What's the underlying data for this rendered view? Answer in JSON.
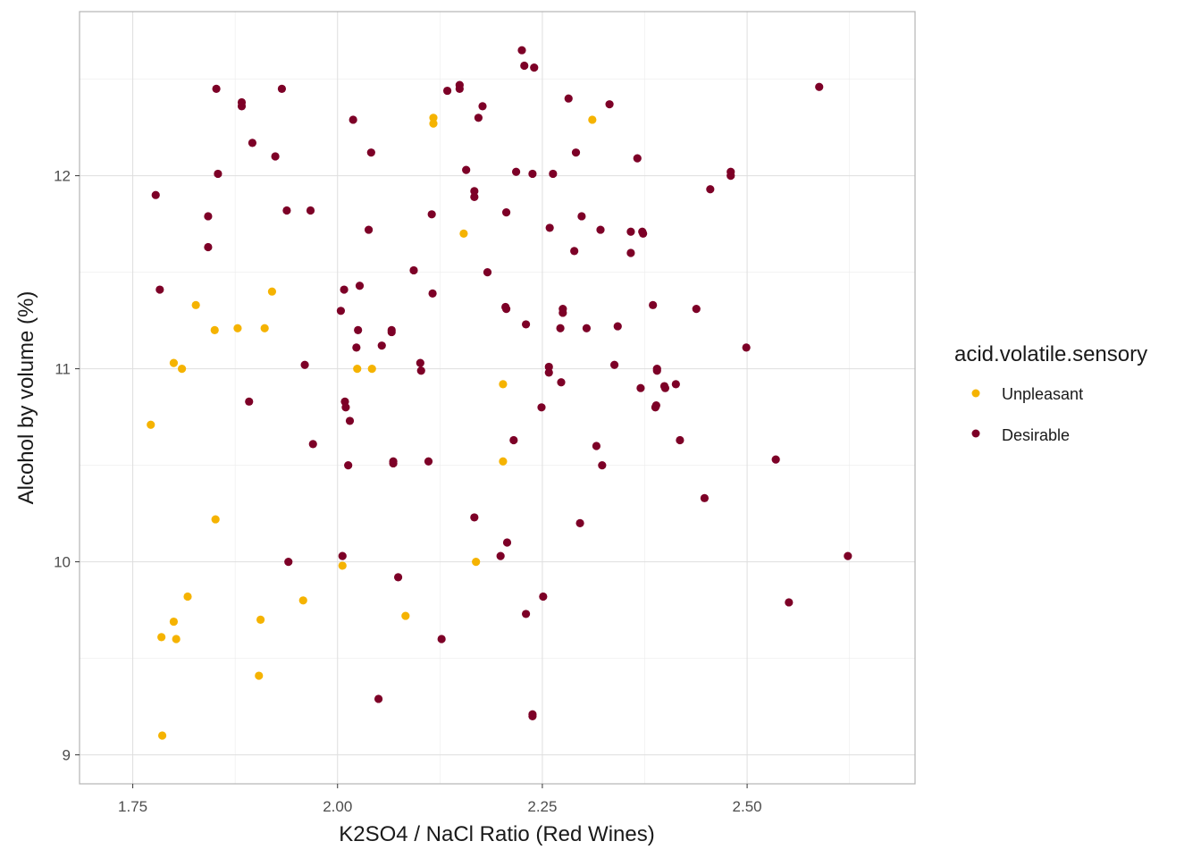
{
  "chart_data": {
    "type": "scatter",
    "xlabel": "K2SO4 / NaCl Ratio (Red Wines)",
    "ylabel": "Alcohol by volume (%)",
    "xlim": [
      1.685,
      2.705
    ],
    "ylim": [
      8.85,
      12.85
    ],
    "x_ticks": [
      1.75,
      2.0,
      2.25,
      2.5
    ],
    "x_tick_labels": [
      "1.75",
      "2.00",
      "2.25",
      "2.50"
    ],
    "y_ticks": [
      9,
      10,
      11,
      12
    ],
    "y_tick_labels": [
      "9",
      "10",
      "11",
      "12"
    ],
    "grid": true,
    "legend": {
      "title": "acid.volatile.sensory",
      "position": "right",
      "entries": [
        {
          "label": "Unpleasant",
          "color": "#F5B301"
        },
        {
          "label": "Desirable",
          "color": "#7D0027"
        }
      ]
    },
    "series": [
      {
        "name": "Unpleasant",
        "color": "#F5B301",
        "points": [
          [
            1.772,
            10.71
          ],
          [
            1.785,
            9.61
          ],
          [
            1.786,
            9.1
          ],
          [
            1.8,
            11.03
          ],
          [
            1.8,
            9.69
          ],
          [
            1.803,
            9.6
          ],
          [
            1.81,
            11.0
          ],
          [
            1.817,
            9.82
          ],
          [
            1.827,
            11.33
          ],
          [
            1.85,
            11.2
          ],
          [
            1.851,
            10.22
          ],
          [
            1.878,
            11.21
          ],
          [
            1.904,
            9.41
          ],
          [
            1.906,
            9.7
          ],
          [
            1.911,
            11.21
          ],
          [
            1.92,
            11.4
          ],
          [
            1.958,
            9.8
          ],
          [
            2.006,
            9.98
          ],
          [
            2.024,
            11.0
          ],
          [
            2.042,
            11.0
          ],
          [
            2.083,
            9.72
          ],
          [
            2.117,
            12.3
          ],
          [
            2.117,
            12.27
          ],
          [
            2.154,
            11.7
          ],
          [
            2.169,
            10.0
          ],
          [
            2.202,
            10.92
          ],
          [
            2.202,
            10.52
          ],
          [
            2.311,
            12.29
          ]
        ]
      },
      {
        "name": "Desirable",
        "color": "#7D0027",
        "points": [
          [
            1.778,
            11.9
          ],
          [
            1.783,
            11.41
          ],
          [
            1.842,
            11.79
          ],
          [
            1.842,
            11.63
          ],
          [
            1.852,
            12.45
          ],
          [
            1.854,
            12.01
          ],
          [
            1.883,
            12.38
          ],
          [
            1.883,
            12.36
          ],
          [
            1.892,
            10.83
          ],
          [
            1.896,
            12.17
          ],
          [
            1.924,
            12.1
          ],
          [
            1.932,
            12.45
          ],
          [
            1.938,
            11.82
          ],
          [
            1.94,
            10.0
          ],
          [
            1.96,
            11.02
          ],
          [
            1.967,
            11.82
          ],
          [
            1.97,
            10.61
          ],
          [
            2.004,
            11.3
          ],
          [
            2.006,
            10.03
          ],
          [
            2.008,
            11.41
          ],
          [
            2.009,
            10.83
          ],
          [
            2.01,
            10.8
          ],
          [
            2.013,
            10.5
          ],
          [
            2.015,
            10.73
          ],
          [
            2.019,
            12.29
          ],
          [
            2.023,
            11.11
          ],
          [
            2.025,
            11.2
          ],
          [
            2.027,
            11.43
          ],
          [
            2.038,
            11.72
          ],
          [
            2.041,
            12.12
          ],
          [
            2.05,
            9.29
          ],
          [
            2.054,
            11.12
          ],
          [
            2.066,
            11.2
          ],
          [
            2.066,
            11.19
          ],
          [
            2.068,
            10.52
          ],
          [
            2.068,
            10.51
          ],
          [
            2.074,
            9.92
          ],
          [
            2.093,
            11.51
          ],
          [
            2.101,
            11.03
          ],
          [
            2.102,
            10.99
          ],
          [
            2.111,
            10.52
          ],
          [
            2.115,
            11.8
          ],
          [
            2.116,
            11.39
          ],
          [
            2.127,
            9.6
          ],
          [
            2.134,
            12.44
          ],
          [
            2.149,
            12.47
          ],
          [
            2.149,
            12.45
          ],
          [
            2.157,
            12.03
          ],
          [
            2.167,
            11.92
          ],
          [
            2.167,
            11.89
          ],
          [
            2.167,
            10.23
          ],
          [
            2.172,
            12.3
          ],
          [
            2.177,
            12.36
          ],
          [
            2.183,
            11.5
          ],
          [
            2.199,
            10.03
          ],
          [
            2.205,
            11.32
          ],
          [
            2.206,
            11.81
          ],
          [
            2.206,
            11.31
          ],
          [
            2.207,
            10.1
          ],
          [
            2.215,
            10.63
          ],
          [
            2.218,
            12.02
          ],
          [
            2.225,
            12.65
          ],
          [
            2.228,
            12.57
          ],
          [
            2.23,
            11.23
          ],
          [
            2.23,
            9.73
          ],
          [
            2.238,
            12.01
          ],
          [
            2.238,
            9.21
          ],
          [
            2.238,
            9.2
          ],
          [
            2.24,
            12.56
          ],
          [
            2.249,
            10.8
          ],
          [
            2.251,
            9.82
          ],
          [
            2.258,
            11.01
          ],
          [
            2.258,
            10.98
          ],
          [
            2.259,
            11.73
          ],
          [
            2.263,
            12.01
          ],
          [
            2.272,
            11.21
          ],
          [
            2.273,
            10.93
          ],
          [
            2.275,
            11.31
          ],
          [
            2.275,
            11.29
          ],
          [
            2.282,
            12.4
          ],
          [
            2.289,
            11.61
          ],
          [
            2.291,
            12.12
          ],
          [
            2.296,
            10.2
          ],
          [
            2.298,
            11.79
          ],
          [
            2.304,
            11.21
          ],
          [
            2.316,
            10.6
          ],
          [
            2.321,
            11.72
          ],
          [
            2.323,
            10.5
          ],
          [
            2.332,
            12.37
          ],
          [
            2.338,
            11.02
          ],
          [
            2.342,
            11.22
          ],
          [
            2.358,
            11.71
          ],
          [
            2.358,
            11.6
          ],
          [
            2.366,
            12.09
          ],
          [
            2.37,
            10.9
          ],
          [
            2.372,
            11.71
          ],
          [
            2.373,
            11.7
          ],
          [
            2.385,
            11.33
          ],
          [
            2.388,
            10.8
          ],
          [
            2.389,
            10.81
          ],
          [
            2.39,
            11.0
          ],
          [
            2.39,
            10.99
          ],
          [
            2.399,
            10.91
          ],
          [
            2.4,
            10.9
          ],
          [
            2.413,
            10.92
          ],
          [
            2.418,
            10.63
          ],
          [
            2.438,
            11.31
          ],
          [
            2.448,
            10.33
          ],
          [
            2.455,
            11.93
          ],
          [
            2.48,
            12.02
          ],
          [
            2.48,
            12.0
          ],
          [
            2.499,
            11.11
          ],
          [
            2.535,
            10.53
          ],
          [
            2.551,
            9.79
          ],
          [
            2.588,
            12.46
          ],
          [
            2.623,
            10.03
          ]
        ]
      }
    ]
  }
}
